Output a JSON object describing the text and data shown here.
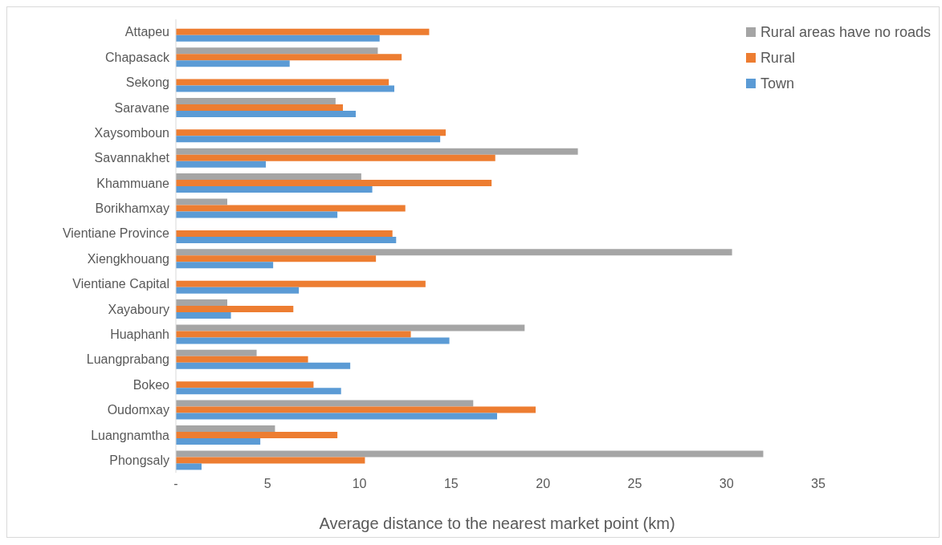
{
  "chart_data": {
    "type": "bar",
    "orientation": "horizontal",
    "xlabel": "Average distance to the nearest market point (km)",
    "categories": [
      "Attapeu",
      "Chapasack",
      "Sekong",
      "Saravane",
      "Xaysomboun",
      "Savannakhet",
      "Khammuane",
      "Borikhamxay",
      "Vientiane Province",
      "Xiengkhouang",
      "Vientiane Capital",
      "Xayaboury",
      "Huaphanh",
      "Luangprabang",
      "Bokeo",
      "Oudomxay",
      "Luangnamtha",
      "Phongsaly"
    ],
    "series": [
      {
        "name": "Rural areas have no roads",
        "color": "#a5a5a5",
        "values": [
          null,
          11.0,
          null,
          8.7,
          null,
          21.9,
          10.1,
          2.8,
          null,
          30.3,
          null,
          2.8,
          19.0,
          4.4,
          null,
          16.2,
          5.4,
          32.0
        ]
      },
      {
        "name": "Rural",
        "color": "#ed7d31",
        "values": [
          13.8,
          12.3,
          11.6,
          9.1,
          14.7,
          17.4,
          17.2,
          12.5,
          11.8,
          10.9,
          13.6,
          6.4,
          12.8,
          7.2,
          7.5,
          19.6,
          8.8,
          10.3
        ]
      },
      {
        "name": "Town",
        "color": "#5b9bd5",
        "values": [
          11.1,
          6.2,
          11.9,
          9.8,
          14.4,
          4.9,
          10.7,
          8.8,
          12.0,
          5.3,
          6.7,
          3.0,
          14.9,
          9.5,
          9.0,
          17.5,
          4.6,
          1.4
        ]
      }
    ],
    "xlim": [
      0,
      35
    ],
    "xticks": [
      {
        "value": 0,
        "label": "-"
      },
      5,
      10,
      15,
      20,
      25,
      30,
      35
    ],
    "legend": "top right"
  }
}
